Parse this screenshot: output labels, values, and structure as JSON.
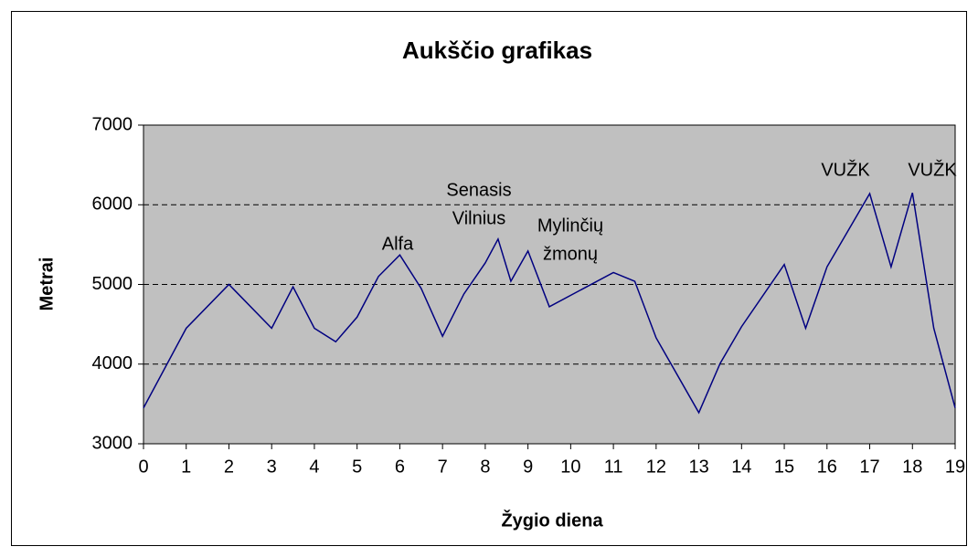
{
  "chart_data": {
    "type": "line",
    "title": "Aukščio grafikas",
    "x_label": "Žygio diena",
    "y_label": "Metrai",
    "x": [
      0,
      1,
      2,
      3,
      3.5,
      4,
      4.5,
      5,
      5.5,
      6,
      6.5,
      7,
      7.5,
      8,
      8.3,
      8.6,
      9,
      9.5,
      11,
      11.5,
      12,
      13,
      13.5,
      14,
      15,
      15.5,
      16,
      17,
      17.5,
      18,
      18.5,
      19
    ],
    "series": [
      {
        "color": "#000080",
        "values": [
          3450,
          4450,
          5000,
          4450,
          4970,
          4450,
          4280,
          4590,
          5100,
          5370,
          4950,
          4350,
          4880,
          5270,
          5570,
          5040,
          5420,
          4720,
          5150,
          5040,
          4330,
          3390,
          4010,
          4470,
          5250,
          4450,
          5220,
          6140,
          5220,
          6150,
          4450,
          3450
        ]
      }
    ],
    "xlim": [
      0,
      19
    ],
    "xticks": [
      0,
      1,
      2,
      3,
      4,
      5,
      6,
      7,
      8,
      9,
      10,
      11,
      12,
      13,
      14,
      15,
      16,
      17,
      18,
      19
    ],
    "ylim": [
      3000,
      7000
    ],
    "yticks": [
      3000,
      4000,
      5000,
      6000,
      7000
    ],
    "grid": true,
    "annotations": [
      [
        "Alfa"
      ],
      [
        "Senasis",
        "Vilnius"
      ],
      [
        "Mylinčių",
        "žmonų"
      ],
      [
        "VUŽK"
      ],
      [
        "VUŽK"
      ]
    ]
  }
}
